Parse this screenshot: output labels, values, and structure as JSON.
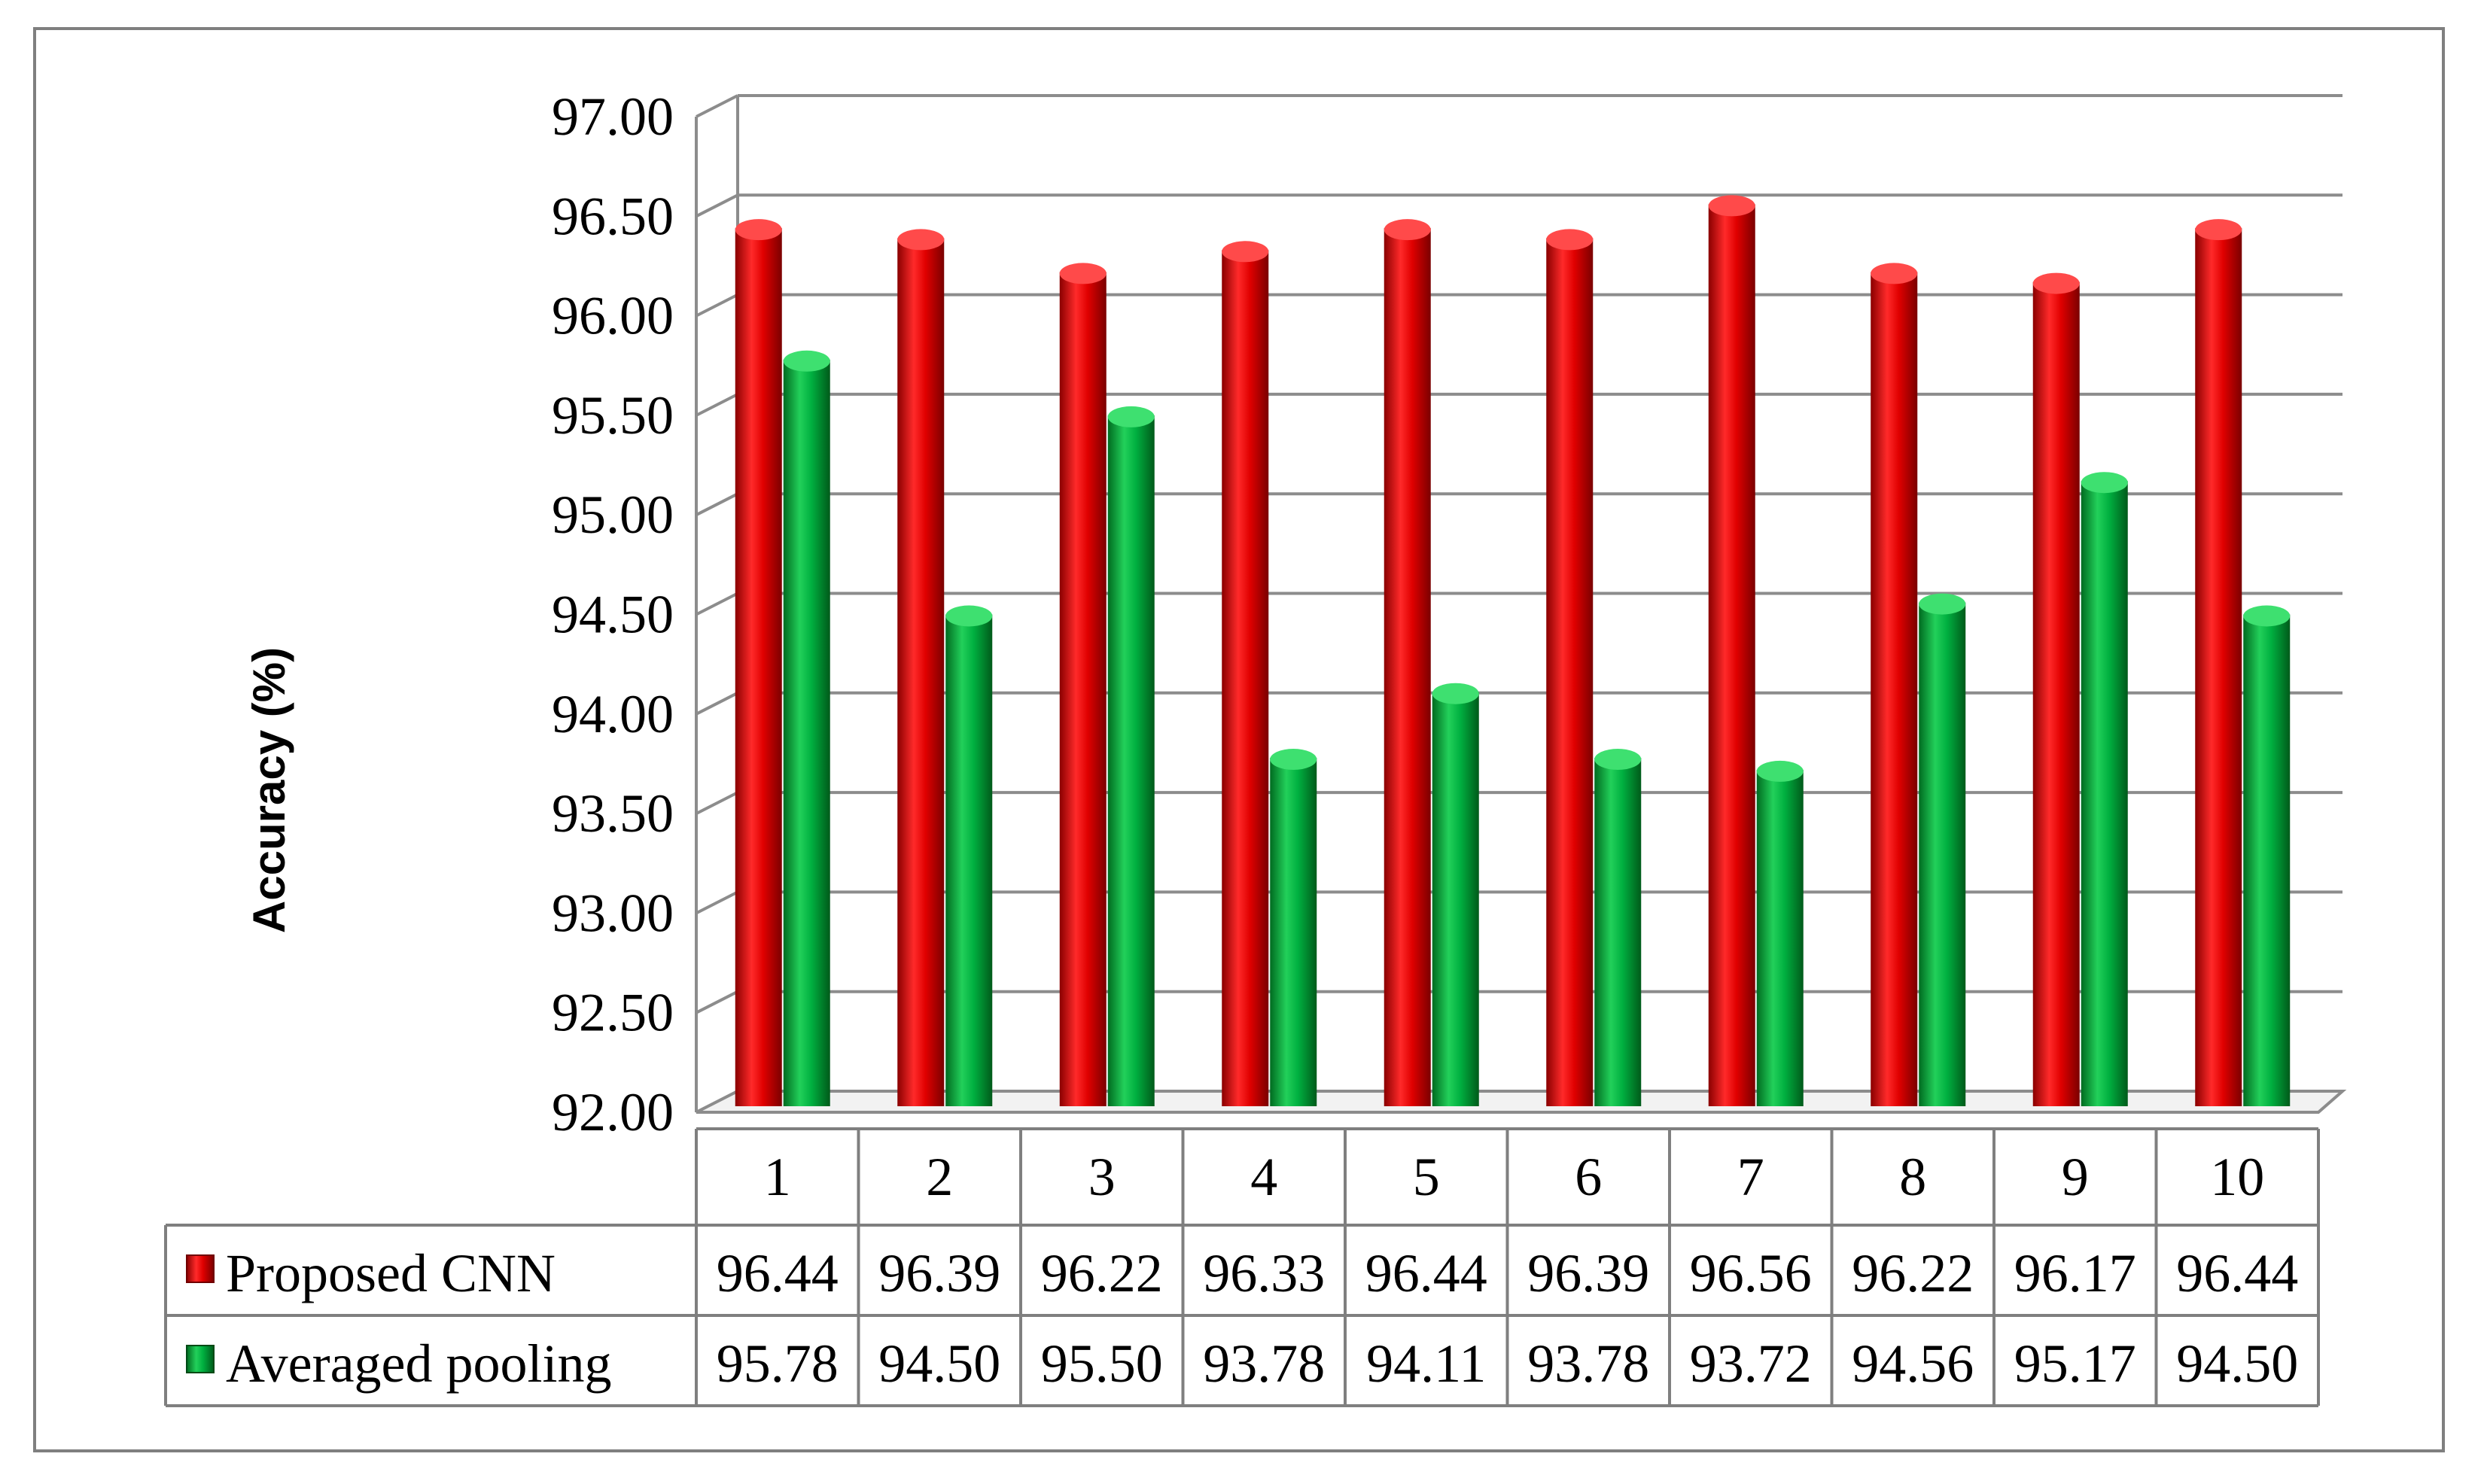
{
  "chart_data": {
    "type": "bar",
    "title": "",
    "xlabel": "",
    "ylabel": "Accuracy (%)",
    "ylim": [
      92.0,
      97.0
    ],
    "y_ticks": [
      "92.00",
      "92.50",
      "93.00",
      "93.50",
      "94.00",
      "94.50",
      "95.00",
      "95.50",
      "96.00",
      "96.50",
      "97.00"
    ],
    "categories": [
      "1",
      "2",
      "3",
      "4",
      "5",
      "6",
      "7",
      "8",
      "9",
      "10"
    ],
    "series": [
      {
        "name": "Proposed CNN",
        "color": "#e31010",
        "values": [
          96.44,
          96.39,
          96.22,
          96.33,
          96.44,
          96.39,
          96.56,
          96.22,
          96.17,
          96.44
        ],
        "table_values": [
          "96.44",
          "96.39",
          "96.22",
          "96.33",
          "96.44",
          "96.39",
          "96.56",
          "96.22",
          "96.17",
          "96.44"
        ]
      },
      {
        "name": "Averaged pooling",
        "color": "#10b040",
        "values": [
          95.78,
          94.5,
          95.5,
          93.78,
          94.11,
          93.78,
          93.72,
          94.56,
          95.17,
          94.5
        ],
        "table_values": [
          "95.78",
          "94.50",
          "95.50",
          "93.78",
          "94.11",
          "93.78",
          "93.72",
          "94.56",
          "95.17",
          "94.50"
        ]
      }
    ],
    "grid": true,
    "legend": "data-table"
  }
}
